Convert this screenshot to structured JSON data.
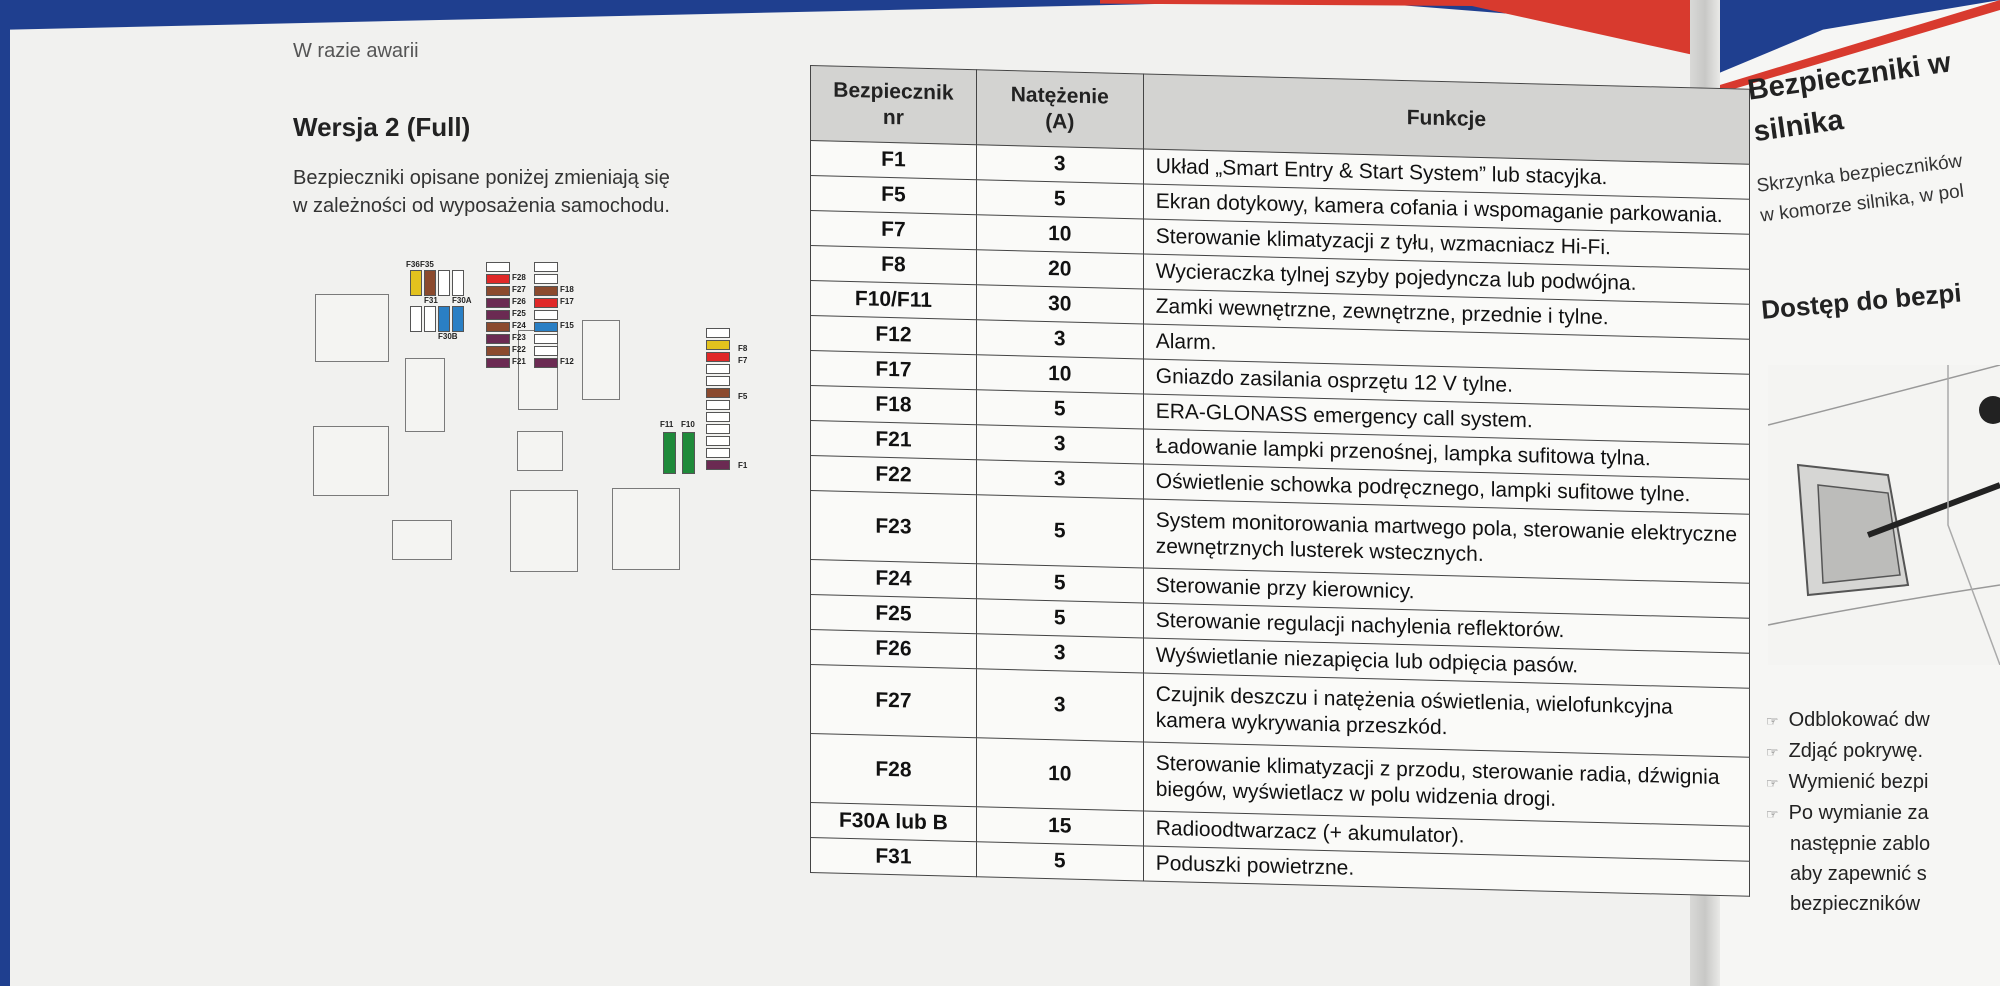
{
  "header": {
    "running_head": "W razie awarii"
  },
  "section": {
    "title": "Wersja 2 (Full)",
    "intro_line1": "Bezpieczniki opisane poniżej zmieniają się",
    "intro_line2": "w zależności od wyposażenia samochodu."
  },
  "diagram": {
    "labels": {
      "F36": "F36",
      "F35": "F35",
      "F31": "F31",
      "F30A": "F30A",
      "F30B": "F30B",
      "F28": "F28",
      "F27": "F27",
      "F26": "F26",
      "F25": "F25",
      "F24": "F24",
      "F23": "F23",
      "F22": "F22",
      "F21": "F21",
      "F18": "F18",
      "F17": "F17",
      "F15": "F15",
      "F12": "F12",
      "F11": "F11",
      "F10": "F10",
      "F8": "F8",
      "F7": "F7",
      "F5": "F5",
      "F1": "F1"
    },
    "colors": {
      "yellow": "#e3c21e",
      "brown": "#8b4a2e",
      "blue": "#2a7fc4",
      "red": "#e02828",
      "purple": "#6b2a52",
      "green": "#1f8a3a",
      "empty": "#ffffff"
    }
  },
  "table": {
    "headers": {
      "nr_l1": "Bezpiecznik",
      "nr_l2": "nr",
      "amp_l1": "Natężenie",
      "amp_l2": "(A)",
      "fn": "Funkcje"
    },
    "rows": [
      {
        "nr": "F1",
        "amp": "3",
        "fn1": "Układ „Smart Entry & Start System” lub stacyjka."
      },
      {
        "nr": "F5",
        "amp": "5",
        "fn1": "Ekran dotykowy, kamera cofania i wspomaganie parkowania."
      },
      {
        "nr": "F7",
        "amp": "10",
        "fn1": "Sterowanie klimatyzacji z tyłu, wzmacniacz Hi-Fi."
      },
      {
        "nr": "F8",
        "amp": "20",
        "fn1": "Wycieraczka tylnej szyby pojedyncza lub podwójna."
      },
      {
        "nr": "F10/F11",
        "amp": "30",
        "fn1": "Zamki wewnętrzne, zewnętrzne, przednie i tylne."
      },
      {
        "nr": "F12",
        "amp": "3",
        "fn1": "Alarm."
      },
      {
        "nr": "F17",
        "amp": "10",
        "fn1": "Gniazdo zasilania osprzętu 12 V tylne."
      },
      {
        "nr": "F18",
        "amp": "5",
        "fn1": "ERA-GLONASS emergency call system."
      },
      {
        "nr": "F21",
        "amp": "3",
        "fn1": "Ładowanie lampki przenośnej, lampka sufitowa tylna."
      },
      {
        "nr": "F22",
        "amp": "3",
        "fn1": "Oświetlenie schowka podręcznego, lampki sufitowe tylne."
      },
      {
        "nr": "F23",
        "amp": "5",
        "fn1": "System monitorowania martwego pola, sterowanie elektryczne",
        "fn2": "zewnętrznych lusterek wstecznych."
      },
      {
        "nr": "F24",
        "amp": "5",
        "fn1": "Sterowanie przy kierownicy."
      },
      {
        "nr": "F25",
        "amp": "5",
        "fn1": "Sterowanie regulacji nachylenia reflektorów."
      },
      {
        "nr": "F26",
        "amp": "3",
        "fn1": "Wyświetlanie niezapięcia lub odpięcia pasów."
      },
      {
        "nr": "F27",
        "amp": "3",
        "fn1": "Czujnik deszczu i natężenia oświetlenia, wielofunkcyjna",
        "fn2": "kamera wykrywania przeszkód."
      },
      {
        "nr": "F28",
        "amp": "10",
        "fn1": "Sterowanie klimatyzacji z przodu, sterowanie radia, dźwignia",
        "fn2": "biegów, wyświetlacz w polu widzenia drogi."
      },
      {
        "nr": "F30A lub B",
        "amp": "15",
        "fn1": "Radioodtwarzacz (+ akumulator)."
      },
      {
        "nr": "F31",
        "amp": "5",
        "fn1": "Poduszki powietrzne."
      }
    ]
  },
  "right_page": {
    "title1": "Bezpieczniki w",
    "title2": "silnika",
    "body1": "Skrzynka bezpieczników",
    "body2": "w komorze silnika, w pol",
    "subtitle": "Dostęp do bezpi",
    "bullets": [
      "Odblokować dw",
      "Zdjąć pokrywę.",
      "Wymienić bezpi",
      "Po wymianie za",
      "następnie zablo",
      "aby zapewnić s",
      "bezpieczników"
    ]
  }
}
